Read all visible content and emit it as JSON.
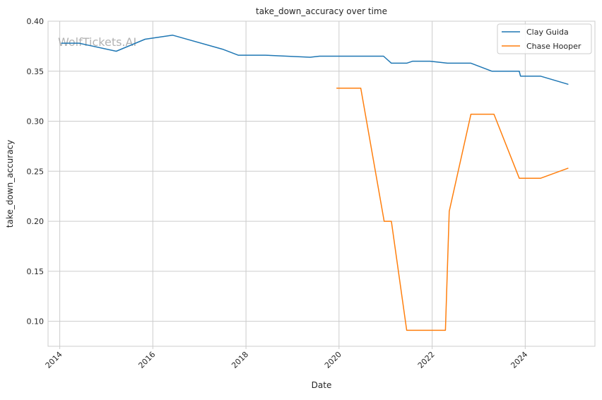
{
  "watermark": "WolfTickets.AI",
  "chart_data": {
    "type": "line",
    "title": "take_down_accuracy over time",
    "xlabel": "Date",
    "ylabel": "take_down_accuracy",
    "xlim": [
      "2013-10-01",
      "2025-07-01"
    ],
    "ylim": [
      0.075,
      0.4
    ],
    "x_ticks": [
      "2014",
      "2016",
      "2018",
      "2020",
      "2022",
      "2024"
    ],
    "y_ticks": [
      "0.10",
      "0.15",
      "0.20",
      "0.25",
      "0.30",
      "0.35",
      "0.40"
    ],
    "grid": true,
    "legend_position": "top-right",
    "series": [
      {
        "name": "Clay Guida",
        "color": "#1f77b4",
        "points": [
          [
            "2014-01-15",
            0.378
          ],
          [
            "2014-06-01",
            0.378
          ],
          [
            "2015-03-20",
            0.37
          ],
          [
            "2015-11-01",
            0.382
          ],
          [
            "2016-06-05",
            0.386
          ],
          [
            "2017-07-01",
            0.372
          ],
          [
            "2017-11-01",
            0.366
          ],
          [
            "2018-06-01",
            0.366
          ],
          [
            "2019-05-20",
            0.364
          ],
          [
            "2019-08-01",
            0.365
          ],
          [
            "2020-12-15",
            0.365
          ],
          [
            "2021-02-15",
            0.358
          ],
          [
            "2021-06-15",
            0.358
          ],
          [
            "2021-08-01",
            0.36
          ],
          [
            "2021-12-15",
            0.36
          ],
          [
            "2022-05-01",
            0.358
          ],
          [
            "2022-11-01",
            0.358
          ],
          [
            "2023-04-15",
            0.35
          ],
          [
            "2023-11-15",
            0.35
          ],
          [
            "2023-11-25",
            0.345
          ],
          [
            "2024-05-01",
            0.345
          ],
          [
            "2024-12-01",
            0.337
          ]
        ]
      },
      {
        "name": "Chase Hooper",
        "color": "#ff7f0e",
        "points": [
          [
            "2019-12-15",
            0.333
          ],
          [
            "2020-06-20",
            0.333
          ],
          [
            "2020-12-20",
            0.2
          ],
          [
            "2021-02-15",
            0.2
          ],
          [
            "2021-06-15",
            0.091
          ],
          [
            "2022-04-15",
            0.091
          ],
          [
            "2022-05-15",
            0.21
          ],
          [
            "2022-11-01",
            0.307
          ],
          [
            "2023-05-01",
            0.307
          ],
          [
            "2023-11-15",
            0.243
          ],
          [
            "2024-05-01",
            0.243
          ],
          [
            "2024-12-01",
            0.253
          ]
        ]
      }
    ]
  }
}
